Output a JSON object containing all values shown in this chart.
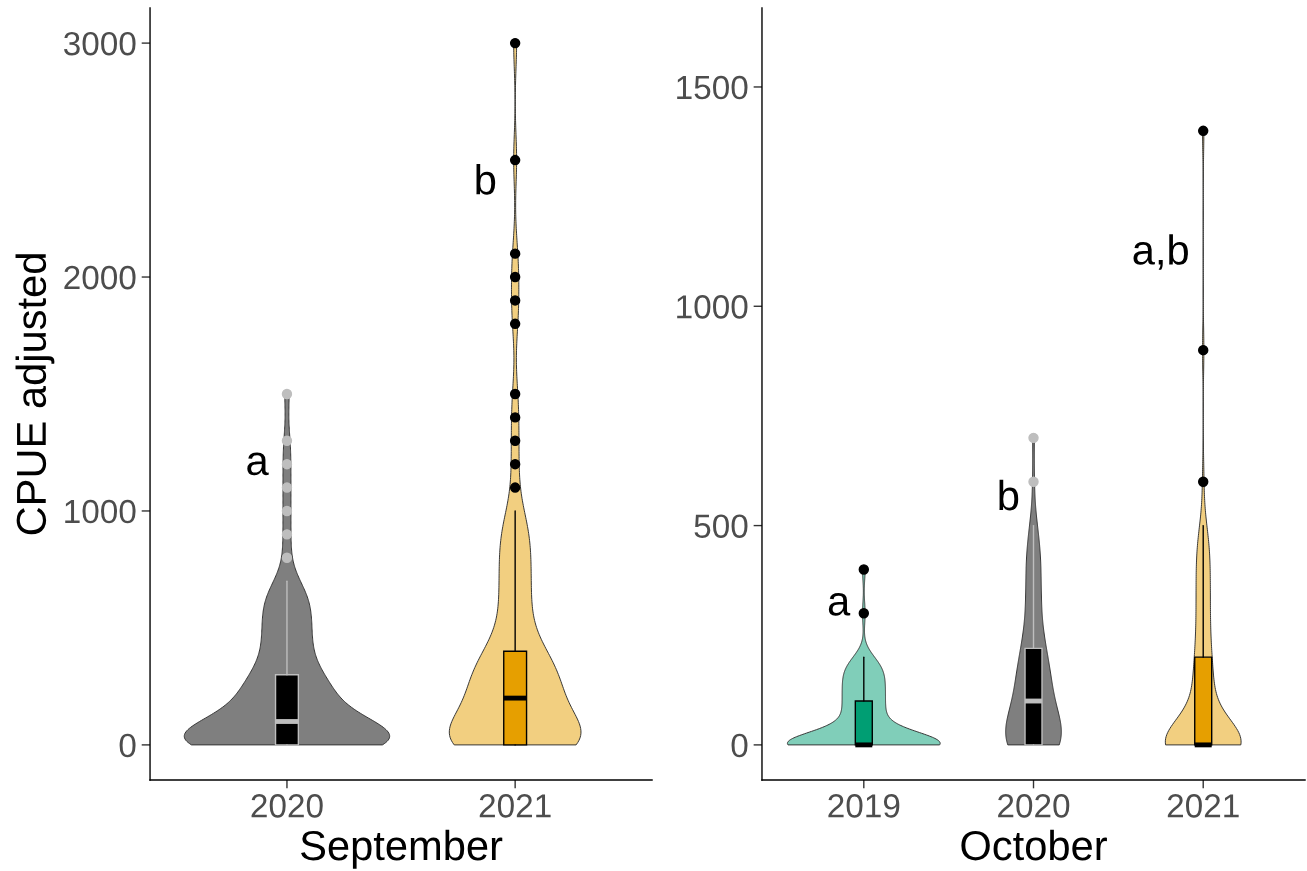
{
  "chart_data": [
    {
      "type": "box",
      "categories": [
        "2020",
        "2021"
      ],
      "xlabel": "September",
      "ylabel": "CPUE adjusted",
      "ylim": [
        -150,
        3150
      ],
      "yticks": [
        0,
        1000,
        2000,
        3000
      ],
      "marker": "circle",
      "colors": [
        "#000000",
        "#e69f00"
      ],
      "boxes": [
        {
          "low": 0,
          "q1": 0,
          "median": 100,
          "q3": 300,
          "high": 700,
          "outliers": [
            800,
            900,
            1000,
            1100,
            1200,
            1300,
            1500
          ]
        },
        {
          "low": 0,
          "q1": 0,
          "median": 200,
          "q3": 400,
          "high": 1000,
          "outliers": [
            1100,
            1200,
            1300,
            1400,
            1500,
            1800,
            1900,
            2000,
            2100,
            2500,
            3000
          ]
        }
      ],
      "annotations": [
        "a",
        "b"
      ]
    },
    {
      "type": "box",
      "categories": [
        "2019",
        "2020",
        "2021"
      ],
      "xlabel": "October",
      "ylim": [
        -80,
        1680
      ],
      "yticks": [
        0,
        500,
        1000,
        1500
      ],
      "marker": "circle",
      "colors": [
        "#009e73",
        "#000000",
        "#e69f00"
      ],
      "boxes": [
        {
          "low": 0,
          "q1": 0,
          "median": 0,
          "q3": 100,
          "high": 200,
          "outliers": [
            300,
            400
          ]
        },
        {
          "low": 0,
          "q1": 0,
          "median": 100,
          "q3": 220,
          "high": 500,
          "outliers": [
            600,
            700
          ]
        },
        {
          "low": 0,
          "q1": 0,
          "median": 0,
          "q3": 200,
          "high": 500,
          "outliers": [
            600,
            900,
            1400
          ]
        }
      ],
      "annotations": [
        "a",
        "b",
        "a,b"
      ]
    }
  ]
}
